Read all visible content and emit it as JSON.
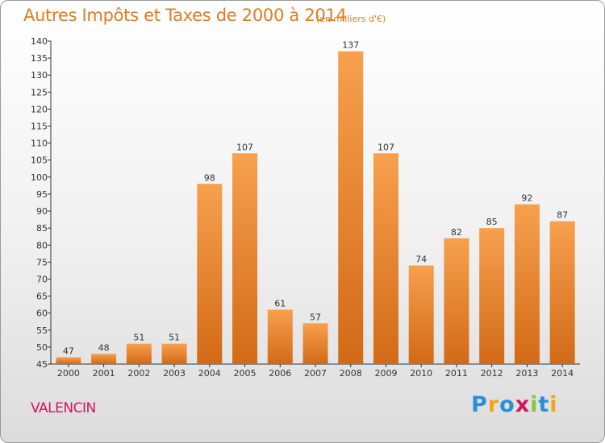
{
  "title": "Autres Impôts et Taxes de 2000 à 2014",
  "subtitle": "(en milliers d'€)",
  "place": "VALENCIN",
  "logo": "Proxiti",
  "colors": {
    "title": "#e07b22",
    "place": "#d0145a",
    "bar_light": "#f7a04e",
    "bar_dark": "#d26a17"
  },
  "chart_data": {
    "type": "bar",
    "title": "Autres Impôts et Taxes de 2000 à 2014",
    "subtitle": "(en milliers d'€)",
    "categories": [
      "2000",
      "2001",
      "2002",
      "2003",
      "2004",
      "2005",
      "2006",
      "2007",
      "2008",
      "2009",
      "2010",
      "2011",
      "2012",
      "2013",
      "2014"
    ],
    "values": [
      47,
      48,
      51,
      51,
      98,
      107,
      61,
      57,
      137,
      107,
      74,
      82,
      85,
      92,
      87
    ],
    "ylim": [
      45,
      140
    ],
    "ytick_step": 5,
    "grid": false
  }
}
